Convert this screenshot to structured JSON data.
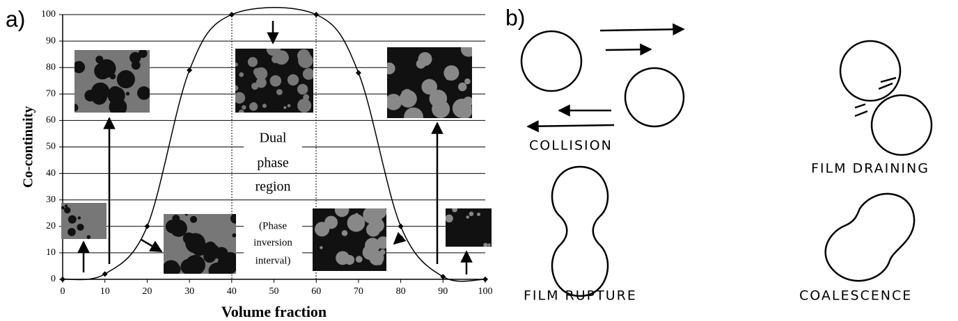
{
  "panel_labels": [
    "a)",
    "b)"
  ],
  "chart_data": {
    "type": "line",
    "xlabel": "Volume fraction",
    "ylabel": "Co-continuity",
    "x": [
      0,
      10,
      20,
      30,
      40,
      60,
      70,
      80,
      90,
      100
    ],
    "series": [
      {
        "color": "#000000",
        "values": [
          0,
          2,
          20,
          79,
          100,
          100,
          78,
          20,
          1,
          0
        ]
      }
    ],
    "xlim": [
      0,
      100
    ],
    "xticks": [
      0,
      10,
      20,
      30,
      40,
      50,
      60,
      70,
      80,
      90,
      100
    ],
    "ylim": [
      0,
      100
    ],
    "yticks": [
      0,
      10,
      20,
      30,
      40,
      50,
      60,
      70,
      80,
      90,
      100
    ],
    "grid": true,
    "annotations": [
      "Dual",
      "phase",
      "region",
      "(Phase",
      "inversion",
      "interval)"
    ]
  },
  "diagram": {
    "labels": [
      "COLLISION",
      "FILM DRAINING",
      "FILM RUPTURE",
      "COALESCENCE"
    ]
  }
}
